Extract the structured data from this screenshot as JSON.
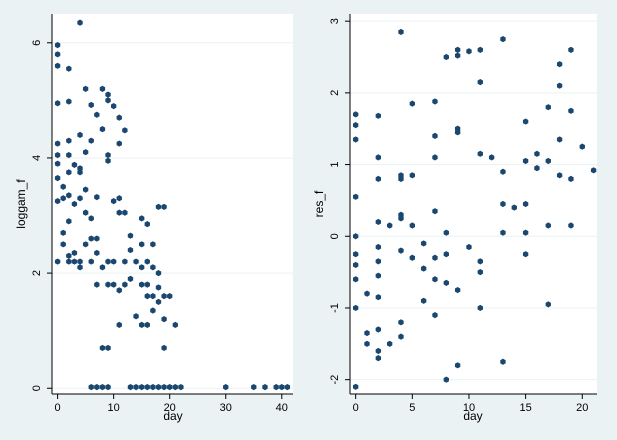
{
  "colors": {
    "outer_background": "#eaf2f3",
    "plot_background": "#ffffff",
    "gridline": "#eaf2f3",
    "marker": "#1a476f",
    "axis": "#000000"
  },
  "chart_data": [
    {
      "type": "scatter",
      "title": "",
      "xlabel": "day",
      "ylabel": "loggam_f",
      "xlim": [
        -1,
        42
      ],
      "ylim": [
        -0.1,
        6.5
      ],
      "xticks": [
        0,
        10,
        20,
        30,
        40
      ],
      "yticks": [
        0,
        2,
        4,
        6
      ],
      "grid": true,
      "points": [
        [
          0,
          5.96
        ],
        [
          0,
          5.8
        ],
        [
          0,
          5.6
        ],
        [
          0,
          4.95
        ],
        [
          0,
          4.25
        ],
        [
          0,
          4.05
        ],
        [
          0,
          3.9
        ],
        [
          0,
          3.65
        ],
        [
          0,
          3.25
        ],
        [
          0,
          2.2
        ],
        [
          1,
          3.5
        ],
        [
          1,
          3.3
        ],
        [
          1,
          2.7
        ],
        [
          1,
          2.5
        ],
        [
          2,
          5.55
        ],
        [
          2,
          4.98
        ],
        [
          2,
          4.3
        ],
        [
          2,
          4.05
        ],
        [
          2,
          3.75
        ],
        [
          2,
          3.35
        ],
        [
          2,
          2.9
        ],
        [
          2,
          2.3
        ],
        [
          2,
          2.2
        ],
        [
          3,
          3.88
        ],
        [
          3,
          3.2
        ],
        [
          3,
          2.35
        ],
        [
          3,
          2.2
        ],
        [
          4,
          6.35
        ],
        [
          4,
          4.4
        ],
        [
          4,
          3.82
        ],
        [
          4,
          3.75
        ],
        [
          4,
          3.3
        ],
        [
          4,
          2.2
        ],
        [
          4,
          2.1
        ],
        [
          5,
          5.2
        ],
        [
          5,
          4.1
        ],
        [
          5,
          3.45
        ],
        [
          5,
          3.05
        ],
        [
          5,
          2.5
        ],
        [
          6,
          4.92
        ],
        [
          6,
          4.3
        ],
        [
          6,
          2.95
        ],
        [
          6,
          2.6
        ],
        [
          6,
          2.2
        ],
        [
          6,
          0.02
        ],
        [
          7,
          4.75
        ],
        [
          7,
          3.32
        ],
        [
          7,
          2.6
        ],
        [
          7,
          2.35
        ],
        [
          7,
          1.8
        ],
        [
          7,
          0.02
        ],
        [
          8,
          5.2
        ],
        [
          8,
          4.5
        ],
        [
          8,
          2.1
        ],
        [
          8,
          0.7
        ],
        [
          8,
          0.02
        ],
        [
          9,
          5.1
        ],
        [
          9,
          5.0
        ],
        [
          9,
          4.05
        ],
        [
          9,
          3.95
        ],
        [
          9,
          2.2
        ],
        [
          9,
          1.8
        ],
        [
          9,
          0.7
        ],
        [
          9,
          0.02
        ],
        [
          10,
          4.9
        ],
        [
          10,
          3.25
        ],
        [
          10,
          2.2
        ],
        [
          10,
          1.8
        ],
        [
          11,
          4.7
        ],
        [
          11,
          4.25
        ],
        [
          11,
          3.3
        ],
        [
          11,
          3.05
        ],
        [
          11,
          1.7
        ],
        [
          11,
          1.1
        ],
        [
          12,
          4.48
        ],
        [
          12,
          3.05
        ],
        [
          12,
          2.2
        ],
        [
          12,
          1.8
        ],
        [
          13,
          2.65
        ],
        [
          13,
          2.4
        ],
        [
          13,
          1.9
        ],
        [
          13,
          0.02
        ],
        [
          14,
          2.2
        ],
        [
          14,
          1.25
        ],
        [
          14,
          0.02
        ],
        [
          15,
          2.95
        ],
        [
          15,
          2.5
        ],
        [
          15,
          2.1
        ],
        [
          15,
          1.8
        ],
        [
          15,
          1.1
        ],
        [
          15,
          0.02
        ],
        [
          16,
          2.85
        ],
        [
          16,
          2.2
        ],
        [
          16,
          1.8
        ],
        [
          16,
          1.6
        ],
        [
          16,
          1.1
        ],
        [
          16,
          0.02
        ],
        [
          17,
          2.5
        ],
        [
          17,
          2.1
        ],
        [
          17,
          1.6
        ],
        [
          17,
          1.35
        ],
        [
          17,
          0.02
        ],
        [
          18,
          3.15
        ],
        [
          18,
          2.0
        ],
        [
          18,
          1.75
        ],
        [
          18,
          1.5
        ],
        [
          18,
          0.02
        ],
        [
          19,
          3.15
        ],
        [
          19,
          1.6
        ],
        [
          19,
          1.2
        ],
        [
          19,
          0.7
        ],
        [
          19,
          0.02
        ],
        [
          20,
          1.6
        ],
        [
          20,
          0.02
        ],
        [
          21,
          1.1
        ],
        [
          21,
          0.02
        ],
        [
          22,
          0.02
        ],
        [
          30,
          0.02
        ],
        [
          35,
          0.02
        ],
        [
          37,
          0.02
        ],
        [
          39,
          0.02
        ],
        [
          40,
          0.02
        ],
        [
          41,
          0.02
        ]
      ]
    },
    {
      "type": "scatter",
      "title": "",
      "xlabel": "day",
      "ylabel": "res_f",
      "xlim": [
        -0.5,
        21.3
      ],
      "ylim": [
        -2.2,
        3.1
      ],
      "xticks": [
        0,
        5,
        10,
        15,
        20
      ],
      "yticks": [
        -2,
        -1,
        0,
        1,
        2,
        3
      ],
      "grid": true,
      "points": [
        [
          0,
          1.7
        ],
        [
          0,
          1.55
        ],
        [
          0,
          1.35
        ],
        [
          0,
          0.55
        ],
        [
          0,
          0.0
        ],
        [
          0,
          -0.25
        ],
        [
          0,
          -0.4
        ],
        [
          0,
          -0.6
        ],
        [
          0,
          -1.0
        ],
        [
          0,
          -2.1
        ],
        [
          1,
          -0.8
        ],
        [
          1,
          -1.35
        ],
        [
          1,
          -1.5
        ],
        [
          2,
          1.68
        ],
        [
          2,
          1.1
        ],
        [
          2,
          0.8
        ],
        [
          2,
          0.2
        ],
        [
          2,
          -0.15
        ],
        [
          2,
          -0.35
        ],
        [
          2,
          -0.55
        ],
        [
          2,
          -0.85
        ],
        [
          2,
          -1.3
        ],
        [
          2,
          -1.6
        ],
        [
          2,
          -1.7
        ],
        [
          3,
          0.15
        ],
        [
          3,
          -1.5
        ],
        [
          4,
          2.85
        ],
        [
          4,
          0.85
        ],
        [
          4,
          0.8
        ],
        [
          4,
          0.3
        ],
        [
          4,
          0.25
        ],
        [
          4,
          -0.2
        ],
        [
          4,
          -1.2
        ],
        [
          4,
          -1.4
        ],
        [
          5,
          1.85
        ],
        [
          5,
          0.85
        ],
        [
          5,
          0.15
        ],
        [
          5,
          -0.3
        ],
        [
          6,
          -0.1
        ],
        [
          6,
          -0.45
        ],
        [
          6,
          -0.9
        ],
        [
          7,
          1.88
        ],
        [
          7,
          1.4
        ],
        [
          7,
          1.1
        ],
        [
          7,
          0.35
        ],
        [
          7,
          -0.3
        ],
        [
          7,
          -0.6
        ],
        [
          7,
          -1.1
        ],
        [
          8,
          2.5
        ],
        [
          8,
          0.05
        ],
        [
          8,
          -0.25
        ],
        [
          8,
          -0.65
        ],
        [
          8,
          -2.0
        ],
        [
          9,
          2.6
        ],
        [
          9,
          2.52
        ],
        [
          9,
          1.5
        ],
        [
          9,
          1.45
        ],
        [
          9,
          -0.75
        ],
        [
          9,
          -1.8
        ],
        [
          10,
          2.58
        ],
        [
          10,
          -0.15
        ],
        [
          11,
          2.6
        ],
        [
          11,
          2.15
        ],
        [
          11,
          1.15
        ],
        [
          11,
          -0.35
        ],
        [
          11,
          -0.5
        ],
        [
          11,
          -1.0
        ],
        [
          12,
          1.1
        ],
        [
          13,
          2.75
        ],
        [
          13,
          0.9
        ],
        [
          13,
          0.45
        ],
        [
          13,
          0.05
        ],
        [
          13,
          -1.75
        ],
        [
          14,
          0.4
        ],
        [
          15,
          1.6
        ],
        [
          15,
          1.05
        ],
        [
          15,
          0.45
        ],
        [
          15,
          0.05
        ],
        [
          15,
          -0.25
        ],
        [
          16,
          1.15
        ],
        [
          16,
          0.95
        ],
        [
          17,
          1.8
        ],
        [
          17,
          1.05
        ],
        [
          17,
          0.15
        ],
        [
          17,
          -0.95
        ],
        [
          18,
          2.4
        ],
        [
          18,
          2.1
        ],
        [
          18,
          1.35
        ],
        [
          18,
          0.85
        ],
        [
          19,
          2.6
        ],
        [
          19,
          1.75
        ],
        [
          19,
          0.8
        ],
        [
          19,
          0.15
        ],
        [
          20,
          1.25
        ],
        [
          21,
          0.92
        ]
      ]
    }
  ]
}
